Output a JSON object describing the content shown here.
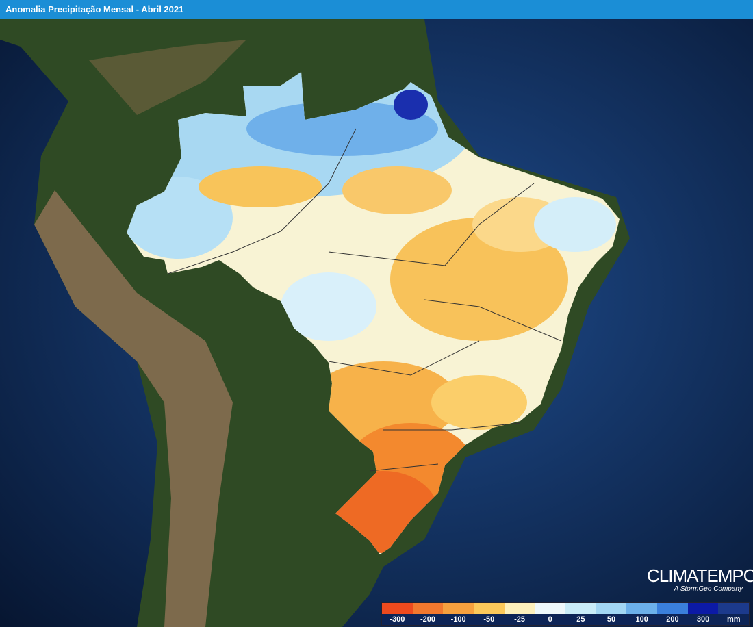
{
  "header": {
    "title": "Anomalia Precipitação Mensal - Abril 2021"
  },
  "legend": {
    "unit": "mm",
    "items": [
      {
        "label": "-300",
        "color": "#ee4a1e"
      },
      {
        "label": "-200",
        "color": "#f2782e"
      },
      {
        "label": "-100",
        "color": "#f6a03e"
      },
      {
        "label": "-50",
        "color": "#fbc85a"
      },
      {
        "label": "-25",
        "color": "#fdf0bc"
      },
      {
        "label": "0",
        "color": "#eef8fb"
      },
      {
        "label": "25",
        "color": "#c9ecf8"
      },
      {
        "label": "50",
        "color": "#a2d6f3"
      },
      {
        "label": "100",
        "color": "#6cb0ea"
      },
      {
        "label": "200",
        "color": "#3a7fdc"
      },
      {
        "label": "300",
        "color": "#0c1aa6"
      }
    ]
  },
  "logo": {
    "name": "CLIMATEMPO",
    "tagline": "A StormGeo Company"
  }
}
